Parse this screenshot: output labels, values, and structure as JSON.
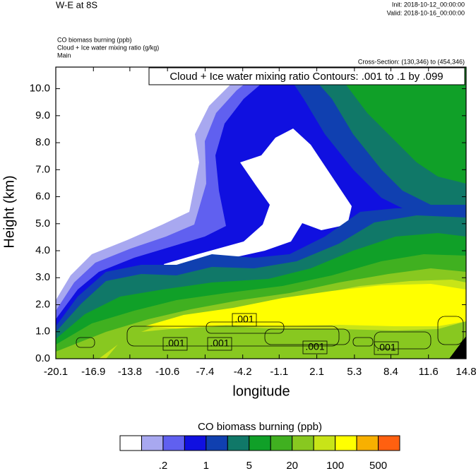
{
  "chart_data": {
    "type": "contour",
    "title": "W-E at 8S",
    "init": "Init: 2018-10-12_00:00:00",
    "valid": "Valid: 2018-10-16_00:00:00",
    "fields": [
      "CO biomass burning   (ppb)",
      "Cloud + Ice water mixing ratio   (g/kg)",
      "Main"
    ],
    "cross_section": "Cross-Section: (130,346) to (454,346)",
    "contour_info": "Cloud + Ice water mixing ratio Contours: .001 to .1 by .099",
    "contour_labels": [
      ".001",
      ".001",
      ".001",
      ".001",
      ".001"
    ],
    "xlabel": "longitude",
    "ylabel": "Height (km)",
    "xlim": [
      -20.1,
      14.8
    ],
    "xticks": [
      -20.1,
      -16.9,
      -13.8,
      -10.6,
      -7.4,
      -4.2,
      -1.1,
      2.1,
      5.3,
      8.4,
      11.6,
      14.8
    ],
    "ylim": [
      0,
      10.8
    ],
    "yticks": [
      {
        "value": 0,
        "label": "0.0"
      },
      {
        "value": 1,
        "label": "1.0"
      },
      {
        "value": 2,
        "label": "2.0"
      },
      {
        "value": 3,
        "label": "3.0"
      },
      {
        "value": 4,
        "label": "4.0"
      },
      {
        "value": 5,
        "label": "5.0"
      },
      {
        "value": 6,
        "label": "6.0"
      },
      {
        "value": 7,
        "label": "7.0"
      },
      {
        "value": 8,
        "label": "8.0"
      },
      {
        "value": 9,
        "label": "9.0"
      },
      {
        "value": 10,
        "label": "10.0"
      }
    ],
    "colorbar": {
      "title": "CO biomass burning  (ppb)",
      "colors": [
        "#ffffff",
        "#a8a8f0",
        "#6060f0",
        "#1010e0",
        "#1040b0",
        "#107868",
        "#10a028",
        "#40b020",
        "#88c820",
        "#c8e418",
        "#ffff00",
        "#f8b000",
        "#ff6010",
        "#ff1010"
      ],
      "labels": [
        ".2",
        "1",
        "5",
        "20",
        "100",
        "500"
      ]
    }
  }
}
